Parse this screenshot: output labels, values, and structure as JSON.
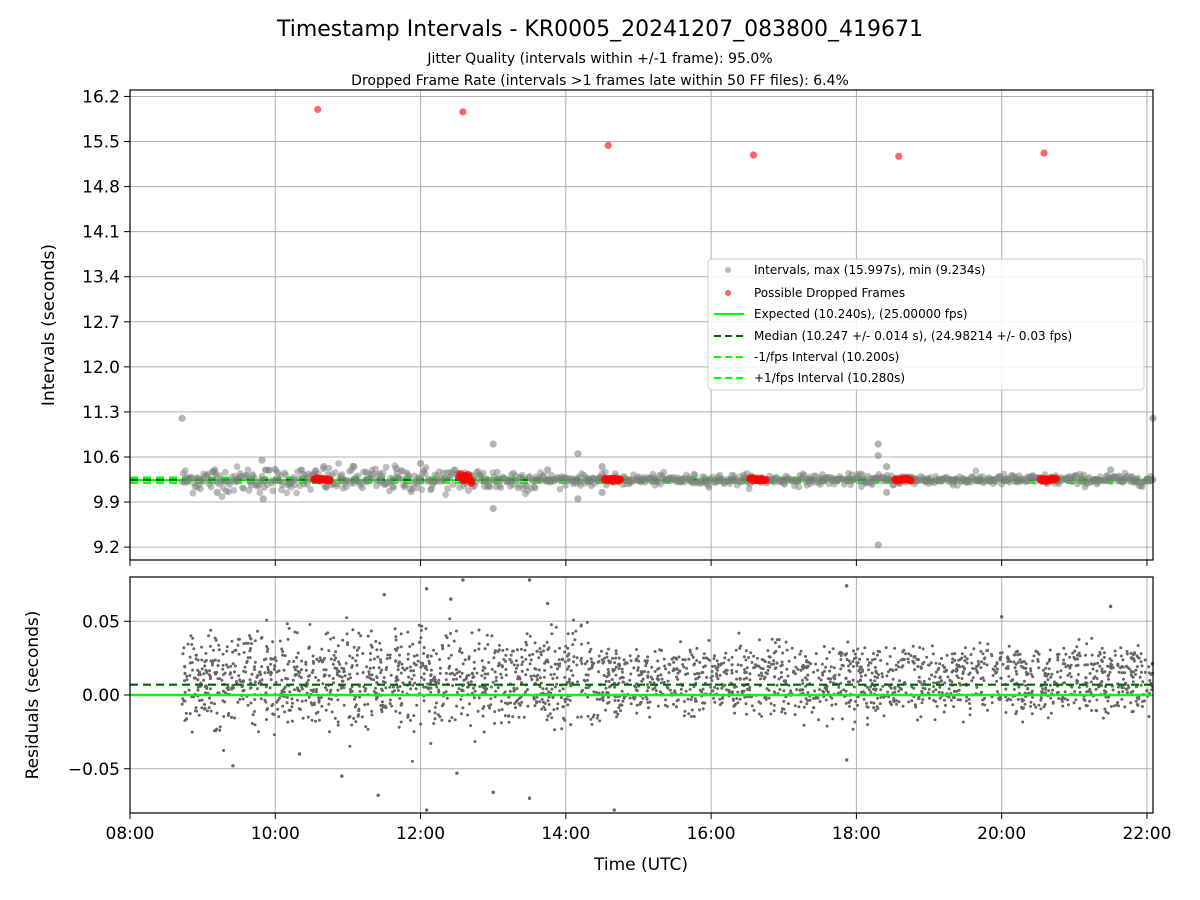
{
  "figure": {
    "title": "Timestamp Intervals - KR0005_20241207_083800_419671",
    "subtitle_1": "Jitter Quality (intervals within +/-1 frame): 95.0%",
    "subtitle_2": "Dropped Frame Rate (intervals >1 frames late within 50 FF files): 6.4%"
  },
  "colors": {
    "intervals": "#808080",
    "dropped": "#ff0000",
    "expected": "#00ff00",
    "median": "#006400",
    "limits": "#00ff00",
    "grid": "#b0b0b0",
    "residuals": "#666666"
  },
  "chart_data": [
    {
      "type": "scatter",
      "ylabel": "Intervals (seconds)",
      "xlabel": "",
      "xlim": [
        "08:00",
        "22:05"
      ],
      "ylim": [
        9.0,
        16.3
      ],
      "yticks": [
        "9.2",
        "9.9",
        "10.6",
        "11.3",
        "12.0",
        "12.7",
        "13.4",
        "14.1",
        "14.8",
        "15.5",
        "16.2"
      ],
      "grid": true,
      "legend_position": "right",
      "legend": [
        "Intervals, max (15.997s), min (9.234s)",
        "Possible Dropped Frames",
        "Expected (10.240s), (25.00000 fps)",
        "Median (10.247 +/- 0.014 s), (24.98214 +/- 0.03 fps)",
        "-1/fps Interval (10.200s)",
        "+1/fps Interval (10.280s)"
      ],
      "reference_lines": {
        "expected": 10.24,
        "median": 10.247,
        "minus_one_fps": 10.2,
        "plus_one_fps": 10.28
      },
      "time_range": [
        "08:43",
        "22:05"
      ],
      "dense_band": {
        "center": 10.247,
        "spread": 0.03
      },
      "outliers": [
        {
          "x": "08:43",
          "y": 11.2
        },
        {
          "x": "09:10",
          "y": 10.4
        },
        {
          "x": "09:12",
          "y": 10.05
        },
        {
          "x": "09:49",
          "y": 10.55
        },
        {
          "x": "09:50",
          "y": 9.95
        },
        {
          "x": "10:40",
          "y": 10.45
        },
        {
          "x": "11:05",
          "y": 10.45
        },
        {
          "x": "11:40",
          "y": 10.42
        },
        {
          "x": "12:00",
          "y": 10.5
        },
        {
          "x": "13:00",
          "y": 9.8
        },
        {
          "x": "13:00",
          "y": 10.8
        },
        {
          "x": "13:45",
          "y": 10.4
        },
        {
          "x": "14:10",
          "y": 10.65
        },
        {
          "x": "14:10",
          "y": 9.95
        },
        {
          "x": "14:30",
          "y": 10.45
        },
        {
          "x": "14:30",
          "y": 10.05
        },
        {
          "x": "18:18",
          "y": 10.8
        },
        {
          "x": "18:18",
          "y": 10.62
        },
        {
          "x": "18:18",
          "y": 9.234
        },
        {
          "x": "18:25",
          "y": 10.05
        },
        {
          "x": "18:25",
          "y": 10.45
        },
        {
          "x": "21:30",
          "y": 10.4
        },
        {
          "x": "22:05",
          "y": 11.2
        }
      ],
      "dropped_frames": [
        {
          "x": "10:35",
          "y": 15.997
        },
        {
          "x": "12:35",
          "y": 15.96
        },
        {
          "x": "14:35",
          "y": 15.44
        },
        {
          "x": "16:35",
          "y": 15.29
        },
        {
          "x": "18:35",
          "y": 15.27
        },
        {
          "x": "20:35",
          "y": 15.32
        }
      ],
      "dropped_clusters": [
        {
          "x_from": "10:32",
          "x_to": "10:45",
          "y": 10.25
        },
        {
          "x_from": "12:32",
          "x_to": "12:42",
          "y": 10.3
        },
        {
          "x_from": "14:32",
          "x_to": "14:45",
          "y": 10.25
        },
        {
          "x_from": "16:32",
          "x_to": "16:45",
          "y": 10.25
        },
        {
          "x_from": "18:32",
          "x_to": "18:45",
          "y": 10.25
        },
        {
          "x_from": "20:32",
          "x_to": "20:45",
          "y": 10.25
        }
      ]
    },
    {
      "type": "scatter",
      "ylabel": "Residuals (seconds)",
      "xlabel": "Time (UTC)",
      "xlim": [
        "08:00",
        "22:05"
      ],
      "ylim": [
        -0.08,
        0.08
      ],
      "yticks": [
        "−0.05",
        "0.00",
        "0.05"
      ],
      "xticks": [
        "08:00",
        "10:00",
        "12:00",
        "14:00",
        "16:00",
        "18:00",
        "20:00",
        "22:00"
      ],
      "grid": true,
      "reference_lines": {
        "expected": 0.0,
        "median": 0.007
      },
      "clusters": [
        {
          "center": 0.02,
          "spread": 0.007
        },
        {
          "center": 0.0,
          "spread": 0.007
        }
      ],
      "outliers": [
        {
          "x": "09:25",
          "y": -0.048
        },
        {
          "x": "10:20",
          "y": -0.04
        },
        {
          "x": "10:55",
          "y": -0.055
        },
        {
          "x": "11:25",
          "y": -0.068
        },
        {
          "x": "11:30",
          "y": 0.068
        },
        {
          "x": "12:05",
          "y": 0.072
        },
        {
          "x": "12:05",
          "y": -0.078
        },
        {
          "x": "12:25",
          "y": 0.065
        },
        {
          "x": "12:30",
          "y": -0.053
        },
        {
          "x": "12:35",
          "y": 0.078
        },
        {
          "x": "13:00",
          "y": -0.066
        },
        {
          "x": "13:30",
          "y": -0.07
        },
        {
          "x": "13:30",
          "y": 0.078
        },
        {
          "x": "13:45",
          "y": 0.062
        },
        {
          "x": "14:40",
          "y": -0.078
        },
        {
          "x": "17:52",
          "y": 0.074
        },
        {
          "x": "17:52",
          "y": -0.044
        },
        {
          "x": "20:00",
          "y": 0.053
        },
        {
          "x": "21:30",
          "y": 0.06
        }
      ]
    }
  ]
}
